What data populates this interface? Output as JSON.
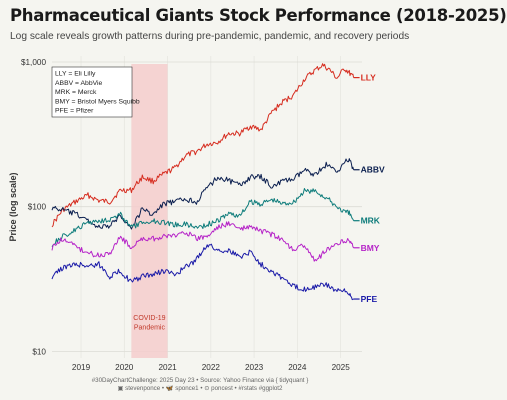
{
  "title": "Pharmaceutical Giants Stock Performance (2018-2025)",
  "subtitle": "Log scale reveals growth patterns during pre-pandemic, pandemic, and recovery periods",
  "caption_line1": "#30DayChartChallenge: 2025 Day 23 • Source: Yahoo Finance via { tidyquant }",
  "caption_line2": "▣ stevenponce • 🦋 sponce1 • ⊙ poncest • #rstats #ggplot2",
  "chart_data": {
    "type": "line",
    "y_scale": "log",
    "ylabel": "Price (log scale)",
    "xlim": [
      "2018-05-01",
      "2025-06-30"
    ],
    "ylim": [
      9,
      1100
    ],
    "x_ticks": [
      {
        "label": "2019",
        "date": "2019-01-01"
      },
      {
        "label": "2020",
        "date": "2020-01-01"
      },
      {
        "label": "2021",
        "date": "2021-01-01"
      },
      {
        "label": "2022",
        "date": "2022-01-01"
      },
      {
        "label": "2023",
        "date": "2023-01-01"
      },
      {
        "label": "2024",
        "date": "2024-01-01"
      },
      {
        "label": "2025",
        "date": "2025-01-01"
      }
    ],
    "y_ticks": [
      {
        "label": "$10",
        "value": 10
      },
      {
        "label": "$100",
        "value": 100
      },
      {
        "label": "$1,000",
        "value": 1000
      }
    ],
    "grid": true,
    "legend_position": "top-left",
    "legend": [
      "LLY = Eli Lilly",
      "ABBV = AbbVie",
      "MRK = Merck",
      "BMY = Bristol Myers Squibb",
      "PFE = Pfizer"
    ],
    "annotation": {
      "lines": [
        "COVID-19",
        "Pandemic"
      ],
      "start": "2020-03-01",
      "end": "2020-12-31",
      "color": "#f4cccc",
      "text_color": "#c0392b"
    },
    "series": [
      {
        "name": "LLY",
        "color": "#d62d20",
        "points": [
          [
            "2018-05-01",
            75
          ],
          [
            "2018-08-01",
            95
          ],
          [
            "2018-12-01",
            110
          ],
          [
            "2019-03-01",
            120
          ],
          [
            "2019-06-01",
            110
          ],
          [
            "2019-09-01",
            108
          ],
          [
            "2019-12-01",
            130
          ],
          [
            "2020-03-01",
            130
          ],
          [
            "2020-06-01",
            160
          ],
          [
            "2020-09-01",
            150
          ],
          [
            "2020-12-01",
            168
          ],
          [
            "2021-03-01",
            185
          ],
          [
            "2021-06-01",
            225
          ],
          [
            "2021-09-01",
            240
          ],
          [
            "2021-12-01",
            270
          ],
          [
            "2022-03-01",
            280
          ],
          [
            "2022-06-01",
            320
          ],
          [
            "2022-09-01",
            320
          ],
          [
            "2022-12-01",
            360
          ],
          [
            "2023-03-01",
            340
          ],
          [
            "2023-06-01",
            450
          ],
          [
            "2023-09-01",
            530
          ],
          [
            "2023-12-01",
            590
          ],
          [
            "2024-03-01",
            760
          ],
          [
            "2024-06-01",
            880
          ],
          [
            "2024-08-01",
            950
          ],
          [
            "2024-10-01",
            880
          ],
          [
            "2024-12-01",
            770
          ],
          [
            "2025-02-01",
            900
          ],
          [
            "2025-03-15",
            840
          ],
          [
            "2025-04-20",
            780
          ]
        ]
      },
      {
        "name": "ABBV",
        "color": "#0b1f4f",
        "points": [
          [
            "2018-05-01",
            98
          ],
          [
            "2018-08-01",
            95
          ],
          [
            "2018-12-01",
            88
          ],
          [
            "2019-03-01",
            80
          ],
          [
            "2019-06-01",
            72
          ],
          [
            "2019-09-01",
            73
          ],
          [
            "2019-12-01",
            88
          ],
          [
            "2020-03-01",
            70
          ],
          [
            "2020-06-01",
            97
          ],
          [
            "2020-09-01",
            88
          ],
          [
            "2020-12-01",
            105
          ],
          [
            "2021-03-01",
            108
          ],
          [
            "2021-06-01",
            113
          ],
          [
            "2021-09-01",
            108
          ],
          [
            "2021-12-01",
            135
          ],
          [
            "2022-03-01",
            160
          ],
          [
            "2022-06-01",
            152
          ],
          [
            "2022-09-01",
            140
          ],
          [
            "2022-12-01",
            160
          ],
          [
            "2023-03-01",
            160
          ],
          [
            "2023-06-01",
            138
          ],
          [
            "2023-09-01",
            150
          ],
          [
            "2023-12-01",
            155
          ],
          [
            "2024-03-01",
            178
          ],
          [
            "2024-06-01",
            168
          ],
          [
            "2024-09-01",
            195
          ],
          [
            "2024-12-01",
            175
          ],
          [
            "2025-02-01",
            205
          ],
          [
            "2025-03-15",
            210
          ],
          [
            "2025-04-20",
            180
          ]
        ]
      },
      {
        "name": "MRK",
        "color": "#0e7c7b",
        "points": [
          [
            "2018-05-01",
            55
          ],
          [
            "2018-08-01",
            62
          ],
          [
            "2018-12-01",
            70
          ],
          [
            "2019-03-01",
            78
          ],
          [
            "2019-06-01",
            80
          ],
          [
            "2019-09-01",
            82
          ],
          [
            "2019-12-01",
            88
          ],
          [
            "2020-03-01",
            72
          ],
          [
            "2020-06-01",
            77
          ],
          [
            "2020-09-01",
            80
          ],
          [
            "2020-12-01",
            78
          ],
          [
            "2021-03-01",
            75
          ],
          [
            "2021-06-01",
            76
          ],
          [
            "2021-09-01",
            72
          ],
          [
            "2021-12-01",
            75
          ],
          [
            "2022-03-01",
            80
          ],
          [
            "2022-06-01",
            90
          ],
          [
            "2022-09-01",
            86
          ],
          [
            "2022-12-01",
            108
          ],
          [
            "2023-03-01",
            105
          ],
          [
            "2023-06-01",
            112
          ],
          [
            "2023-09-01",
            105
          ],
          [
            "2023-12-01",
            108
          ],
          [
            "2024-03-01",
            128
          ],
          [
            "2024-06-01",
            128
          ],
          [
            "2024-09-01",
            115
          ],
          [
            "2024-12-01",
            100
          ],
          [
            "2025-02-01",
            92
          ],
          [
            "2025-03-15",
            90
          ],
          [
            "2025-04-20",
            80
          ]
        ]
      },
      {
        "name": "BMY",
        "color": "#b624c8",
        "points": [
          [
            "2018-05-01",
            52
          ],
          [
            "2018-08-01",
            60
          ],
          [
            "2018-12-01",
            52
          ],
          [
            "2019-03-01",
            48
          ],
          [
            "2019-06-01",
            46
          ],
          [
            "2019-09-01",
            48
          ],
          [
            "2019-12-01",
            62
          ],
          [
            "2020-03-01",
            52
          ],
          [
            "2020-06-01",
            60
          ],
          [
            "2020-09-01",
            60
          ],
          [
            "2020-12-01",
            62
          ],
          [
            "2021-03-01",
            63
          ],
          [
            "2021-06-01",
            67
          ],
          [
            "2021-09-01",
            60
          ],
          [
            "2021-12-01",
            62
          ],
          [
            "2022-03-01",
            72
          ],
          [
            "2022-06-01",
            77
          ],
          [
            "2022-09-01",
            70
          ],
          [
            "2022-12-01",
            72
          ],
          [
            "2023-03-01",
            68
          ],
          [
            "2023-06-01",
            64
          ],
          [
            "2023-09-01",
            58
          ],
          [
            "2023-12-01",
            51
          ],
          [
            "2024-03-01",
            54
          ],
          [
            "2024-06-01",
            42
          ],
          [
            "2024-09-01",
            50
          ],
          [
            "2024-12-01",
            56
          ],
          [
            "2025-02-01",
            58
          ],
          [
            "2025-03-15",
            60
          ],
          [
            "2025-04-20",
            52
          ]
        ]
      },
      {
        "name": "PFE",
        "color": "#1a1aa8",
        "points": [
          [
            "2018-05-01",
            33
          ],
          [
            "2018-08-01",
            38
          ],
          [
            "2018-12-01",
            40
          ],
          [
            "2019-03-01",
            39
          ],
          [
            "2019-06-01",
            40
          ],
          [
            "2019-09-01",
            33
          ],
          [
            "2019-12-01",
            36
          ],
          [
            "2020-03-01",
            30
          ],
          [
            "2020-06-01",
            33
          ],
          [
            "2020-09-01",
            34
          ],
          [
            "2020-12-01",
            36
          ],
          [
            "2021-03-01",
            34
          ],
          [
            "2021-06-01",
            38
          ],
          [
            "2021-09-01",
            43
          ],
          [
            "2021-12-01",
            55
          ],
          [
            "2022-03-01",
            50
          ],
          [
            "2022-06-01",
            50
          ],
          [
            "2022-09-01",
            45
          ],
          [
            "2022-12-01",
            49
          ],
          [
            "2023-03-01",
            40
          ],
          [
            "2023-06-01",
            36
          ],
          [
            "2023-09-01",
            32
          ],
          [
            "2023-12-01",
            28
          ],
          [
            "2024-03-01",
            27
          ],
          [
            "2024-06-01",
            28
          ],
          [
            "2024-09-01",
            29
          ],
          [
            "2024-12-01",
            26
          ],
          [
            "2025-02-01",
            26
          ],
          [
            "2025-03-15",
            25
          ],
          [
            "2025-04-20",
            23
          ]
        ]
      }
    ]
  }
}
